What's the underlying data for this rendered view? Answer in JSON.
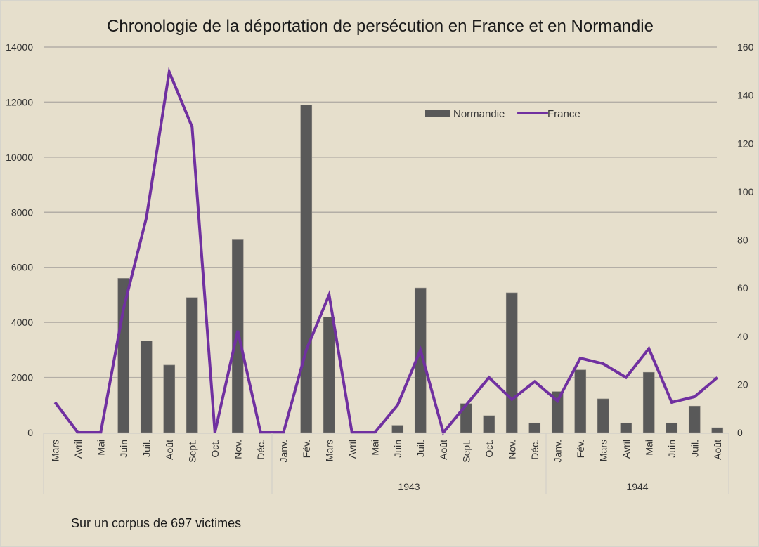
{
  "chart_data": {
    "type": "bar+line",
    "title": "Chronologie de la déportation de persécution en France et en Normandie",
    "note": "Sur un corpus de 697 victimes",
    "groups": [
      {
        "label": "",
        "categories": [
          "Mars",
          "Avril",
          "Mai",
          "Juin",
          "Juil.",
          "Août",
          "Sept.",
          "Oct.",
          "Nov.",
          "Déc."
        ]
      },
      {
        "label": "1943",
        "categories": [
          "Janv.",
          "Fév.",
          "Mars",
          "Avril",
          "Mai",
          "Juin",
          "Juil.",
          "Août",
          "Sept.",
          "Oct.",
          "Nov.",
          "Déc."
        ]
      },
      {
        "label": "1944",
        "categories": [
          "Janv.",
          "Fév.",
          "Mars",
          "Avril",
          "Mai",
          "Juin",
          "Juil.",
          "Août"
        ]
      }
    ],
    "left_axis": {
      "ylim": [
        0,
        14000
      ],
      "ticks": [
        0,
        2000,
        4000,
        6000,
        8000,
        10000,
        12000,
        14000
      ]
    },
    "right_axis": {
      "ylim": [
        0,
        160
      ],
      "ticks": [
        0,
        20,
        40,
        60,
        80,
        100,
        120,
        140,
        160
      ]
    },
    "grid": true,
    "legend": {
      "placement": "top-right",
      "entries": [
        "Normandie",
        "France"
      ]
    },
    "series": [
      {
        "name": "Normandie",
        "type": "bar",
        "axis": "right",
        "color": "#595959",
        "values": [
          0,
          0,
          0,
          64,
          38,
          28,
          56,
          0,
          80,
          0,
          0,
          136,
          48,
          0,
          0,
          3,
          60,
          0,
          12,
          7,
          58,
          4,
          17,
          26,
          14,
          4,
          25,
          4,
          11,
          2
        ]
      },
      {
        "name": "France",
        "type": "line",
        "axis": "left",
        "color": "#7030a0",
        "values": [
          1100,
          0,
          0,
          4500,
          7800,
          13100,
          11100,
          0,
          3700,
          0,
          0,
          3000,
          5000,
          0,
          0,
          1000,
          3000,
          0,
          1000,
          2000,
          1200,
          1850,
          1150,
          2700,
          2500,
          2000,
          3050,
          1100,
          1300,
          2000
        ]
      }
    ]
  }
}
